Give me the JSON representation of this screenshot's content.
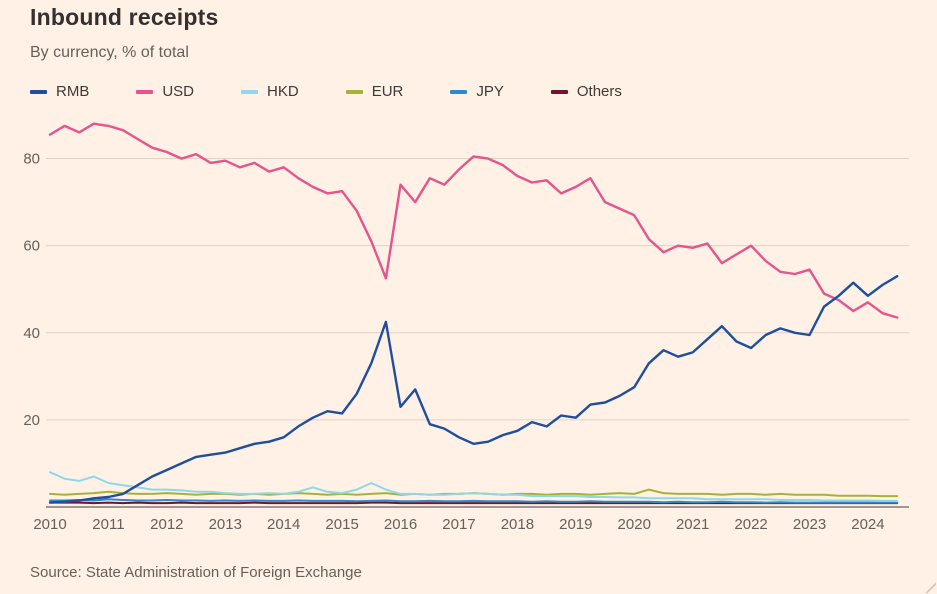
{
  "title": "Inbound receipts",
  "subtitle": "By currency, % of total",
  "source": "Source: State Administration of Foreign Exchange",
  "colors": {
    "background": "#FFF1E5",
    "title_text": "#33302E",
    "muted_text": "#66605C",
    "gridline": "#E2D2C3",
    "axis_line": "#66605C"
  },
  "chart_data": {
    "type": "line",
    "title": "Inbound receipts",
    "subtitle": "By currency, % of total",
    "xlabel": "",
    "ylabel": "% of total",
    "grid": true,
    "legend_position": "top",
    "ylim": [
      0,
      90
    ],
    "xlim": [
      2010,
      2024.6
    ],
    "y_ticks": [
      20,
      40,
      60,
      80
    ],
    "x_ticks": [
      2010,
      2011,
      2012,
      2013,
      2014,
      2015,
      2016,
      2017,
      2018,
      2019,
      2020,
      2021,
      2022,
      2023,
      2024
    ],
    "x": [
      2010.0,
      2010.25,
      2010.5,
      2010.75,
      2011.0,
      2011.25,
      2011.5,
      2011.75,
      2012.0,
      2012.25,
      2012.5,
      2012.75,
      2013.0,
      2013.25,
      2013.5,
      2013.75,
      2014.0,
      2014.25,
      2014.5,
      2014.75,
      2015.0,
      2015.25,
      2015.5,
      2015.75,
      2016.0,
      2016.25,
      2016.5,
      2016.75,
      2017.0,
      2017.25,
      2017.5,
      2017.75,
      2018.0,
      2018.25,
      2018.5,
      2018.75,
      2019.0,
      2019.25,
      2019.5,
      2019.75,
      2020.0,
      2020.25,
      2020.5,
      2020.75,
      2021.0,
      2021.25,
      2021.5,
      2021.75,
      2022.0,
      2022.25,
      2022.5,
      2022.75,
      2023.0,
      2023.25,
      2023.5,
      2023.75,
      2024.0,
      2024.25,
      2024.5
    ],
    "series": [
      {
        "name": "RMB",
        "color": "#1F4E9E",
        "values": [
          1.0,
          1.2,
          1.5,
          2.0,
          2.3,
          3.0,
          5.0,
          7.0,
          8.5,
          10.0,
          11.5,
          12.0,
          12.5,
          13.5,
          14.5,
          15.0,
          16.0,
          18.5,
          20.5,
          22.0,
          21.5,
          26.0,
          33.0,
          42.5,
          23.0,
          27.0,
          19.0,
          18.0,
          16.0,
          14.5,
          15.0,
          16.5,
          17.5,
          19.5,
          18.5,
          21.0,
          20.5,
          23.5,
          24.0,
          25.5,
          27.5,
          33.0,
          36.0,
          34.5,
          35.5,
          38.5,
          41.5,
          38.0,
          36.5,
          39.5,
          41.0,
          40.0,
          39.5,
          46.0,
          48.5,
          51.5,
          48.5,
          51.0,
          53.0
        ]
      },
      {
        "name": "USD",
        "color": "#E5548A",
        "values": [
          85.5,
          87.5,
          86.0,
          88.0,
          87.5,
          86.5,
          84.5,
          82.5,
          81.5,
          80.0,
          81.0,
          79.0,
          79.5,
          78.0,
          79.0,
          77.0,
          78.0,
          75.5,
          73.5,
          72.0,
          72.5,
          68.0,
          61.0,
          52.5,
          74.0,
          70.0,
          75.5,
          74.0,
          77.5,
          80.5,
          80.0,
          78.5,
          76.0,
          74.5,
          75.0,
          72.0,
          73.5,
          75.5,
          70.0,
          68.5,
          67.0,
          61.5,
          58.5,
          60.0,
          59.5,
          60.5,
          56.0,
          58.0,
          60.0,
          56.5,
          54.0,
          53.5,
          54.5,
          49.0,
          47.5,
          45.0,
          47.0,
          44.5,
          43.5
        ]
      },
      {
        "name": "HKD",
        "color": "#8FD8E8",
        "values": [
          8.0,
          6.5,
          6.0,
          7.0,
          5.5,
          5.0,
          4.5,
          4.0,
          4.0,
          3.8,
          3.5,
          3.5,
          3.2,
          3.0,
          3.0,
          3.2,
          3.0,
          3.5,
          4.5,
          3.5,
          3.2,
          4.0,
          5.5,
          4.0,
          3.0,
          3.0,
          2.8,
          2.8,
          3.0,
          3.2,
          3.0,
          2.8,
          2.8,
          2.5,
          2.5,
          2.5,
          2.5,
          2.3,
          2.3,
          2.2,
          2.2,
          2.0,
          2.0,
          2.0,
          2.0,
          1.8,
          1.8,
          1.8,
          1.8,
          1.8,
          1.6,
          1.6,
          1.6,
          1.5,
          1.5,
          1.5,
          1.5,
          1.4,
          1.4
        ]
      },
      {
        "name": "EUR",
        "color": "#A5B336",
        "values": [
          3.0,
          2.8,
          3.0,
          3.2,
          3.5,
          3.2,
          3.0,
          3.0,
          3.2,
          3.0,
          2.8,
          3.0,
          3.0,
          2.8,
          3.0,
          2.8,
          3.0,
          3.2,
          3.0,
          2.8,
          3.0,
          2.8,
          3.0,
          3.2,
          2.8,
          3.0,
          2.8,
          3.0,
          3.0,
          3.2,
          3.0,
          2.8,
          3.0,
          3.0,
          2.8,
          3.0,
          3.0,
          2.8,
          3.0,
          3.2,
          3.0,
          4.0,
          3.2,
          3.0,
          3.0,
          3.0,
          2.8,
          3.0,
          3.0,
          2.8,
          3.0,
          2.8,
          2.8,
          2.8,
          2.6,
          2.6,
          2.6,
          2.5,
          2.5
        ]
      },
      {
        "name": "JPY",
        "color": "#2E8AC8",
        "values": [
          1.5,
          1.5,
          1.6,
          1.5,
          1.8,
          1.6,
          1.5,
          1.5,
          1.6,
          1.5,
          1.5,
          1.4,
          1.5,
          1.4,
          1.5,
          1.4,
          1.4,
          1.5,
          1.4,
          1.4,
          1.4,
          1.3,
          1.4,
          1.5,
          1.3,
          1.3,
          1.4,
          1.3,
          1.3,
          1.4,
          1.3,
          1.3,
          1.3,
          1.2,
          1.3,
          1.2,
          1.2,
          1.3,
          1.2,
          1.2,
          1.2,
          1.2,
          1.1,
          1.2,
          1.1,
          1.1,
          1.2,
          1.1,
          1.1,
          1.0,
          1.1,
          1.0,
          1.0,
          1.0,
          1.0,
          1.0,
          1.0,
          1.0,
          1.0
        ]
      },
      {
        "name": "Others",
        "color": "#72142E",
        "values": [
          1.0,
          1.0,
          1.0,
          0.9,
          1.0,
          0.9,
          1.0,
          0.9,
          0.9,
          1.0,
          0.9,
          0.9,
          0.9,
          0.9,
          1.0,
          0.9,
          0.9,
          0.9,
          0.9,
          0.9,
          0.9,
          0.9,
          1.0,
          1.0,
          0.9,
          0.9,
          0.9,
          0.9,
          0.9,
          0.9,
          0.9,
          0.9,
          0.9,
          0.9,
          0.9,
          0.9,
          0.9,
          0.9,
          0.9,
          0.9,
          0.9,
          0.9,
          0.9,
          0.9,
          0.9,
          0.9,
          0.9,
          0.9,
          0.9,
          0.9,
          0.9,
          0.9,
          0.9,
          0.9,
          0.9,
          0.9,
          0.9,
          0.9,
          0.9
        ]
      }
    ]
  }
}
